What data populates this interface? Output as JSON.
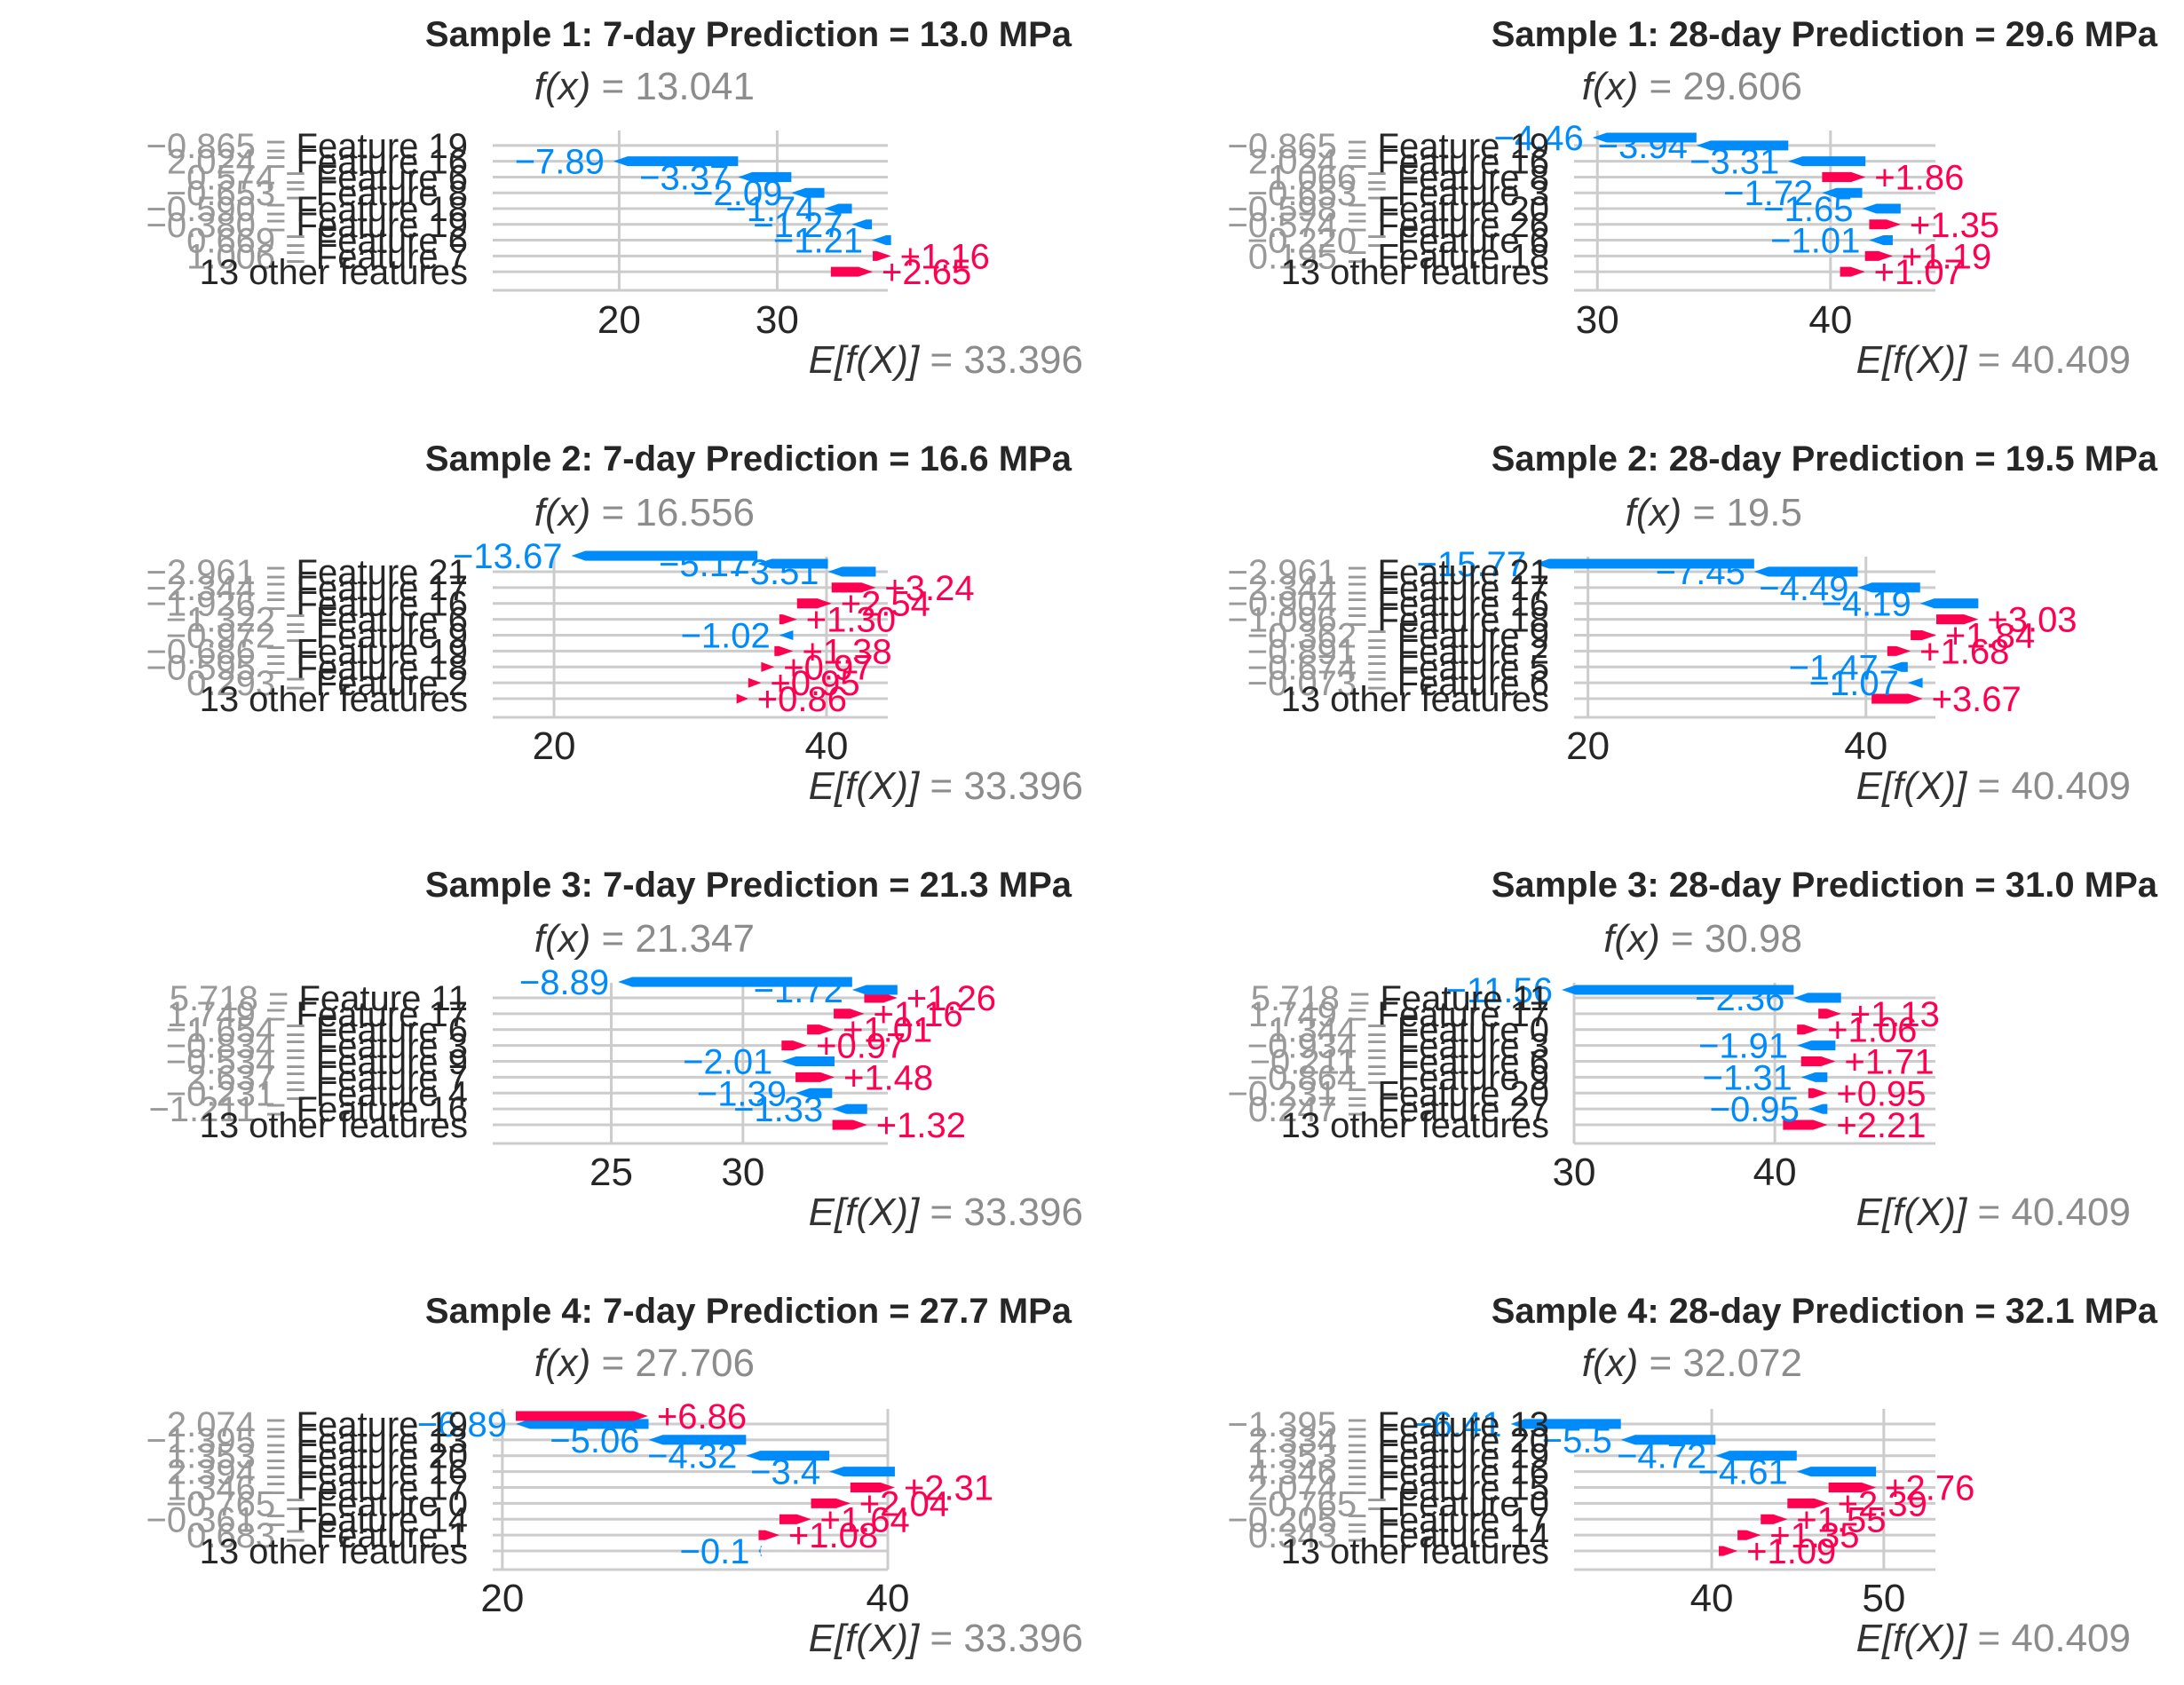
{
  "colors": {
    "negative": "#008bfb",
    "positive": "#ff0051",
    "grid": "#cccccc",
    "label_gray": "#999999",
    "text": "#262626"
  },
  "chart_data": [
    {
      "type": "waterfall",
      "title": "Sample 1: 7-day Prediction = 13.0 MPa",
      "fx_value": "13.041",
      "base_value": "33.396",
      "xticks": [
        20,
        30
      ],
      "xlim": [
        12.0,
        37.0
      ],
      "base": 33.396,
      "contributions": [
        -2.65,
        -1.16,
        1.21,
        1.27,
        1.74,
        2.09,
        3.37,
        7.89
      ],
      "labels": [
        "+2.65",
        "+1.16",
        "−1.21",
        "−1.27",
        "−1.74",
        "−2.09",
        "−3.37",
        "−7.89"
      ],
      "rows": [
        {
          "value": "−0.865",
          "feature": "Feature 19"
        },
        {
          "value": "2.024",
          "feature": "Feature 16"
        },
        {
          "value": "0.574",
          "feature": "Feature 6"
        },
        {
          "value": "−0.653",
          "feature": "Feature 8"
        },
        {
          "value": "−0.590",
          "feature": "Feature 18"
        },
        {
          "value": "−0.380",
          "feature": "Feature 19"
        },
        {
          "value": "0.669",
          "feature": "Feature 6"
        },
        {
          "value": "1.006",
          "feature": "Feature 7"
        },
        {
          "value": "",
          "feature": "13 other features"
        }
      ]
    },
    {
      "type": "waterfall",
      "title": "Sample 1: 28-day Prediction = 29.6 MPa",
      "fx_value": "29.606",
      "base_value": "40.409",
      "xticks": [
        30,
        40
      ],
      "xlim": [
        29.0,
        44.5
      ],
      "base": 40.409,
      "contributions": [
        -1.07,
        -1.19,
        1.01,
        -1.35,
        1.65,
        1.72,
        -1.86,
        3.31,
        3.94,
        4.46
      ],
      "labels": [
        "+1.07",
        "+1.19",
        "−1.01",
        "+1.35",
        "−1.65",
        "−1.72",
        "+1.86",
        "−3.31",
        "−3.94",
        "−4.46"
      ],
      "rows": [
        {
          "value": "−0.865",
          "feature": "Feature 19"
        },
        {
          "value": "2.024",
          "feature": "Feature 16"
        },
        {
          "value": "1.066",
          "feature": "Feature 8"
        },
        {
          "value": "−0.653",
          "feature": "Feature 3"
        },
        {
          "value": "−0.598",
          "feature": "Feature 20"
        },
        {
          "value": "−0.574",
          "feature": "Feature 26"
        },
        {
          "value": "−0.220",
          "feature": "Feature 6"
        },
        {
          "value": "0.195",
          "feature": "Feature 18"
        },
        {
          "value": "",
          "feature": "13 other features"
        }
      ]
    },
    {
      "type": "waterfall",
      "title": "Sample 2: 7-day Prediction = 16.6 MPa",
      "fx_value": "16.556",
      "base_value": "33.396",
      "xticks": [
        20,
        40
      ],
      "xlim": [
        15.5,
        44.5
      ],
      "base": 33.396,
      "contributions": [
        -0.86,
        -0.95,
        -0.97,
        -1.38,
        1.02,
        -1.3,
        -2.54,
        -3.24,
        3.51,
        5.17,
        13.67
      ],
      "labels": [
        "+0.86",
        "+0.95",
        "+0.97",
        "+1.38",
        "−1.02",
        "+1.30",
        "+2.54",
        "+3.24",
        "−3.51",
        "−5.17",
        "−13.67"
      ],
      "rows": [
        {
          "value": "−2.961",
          "feature": "Feature 21"
        },
        {
          "value": "−2.344",
          "feature": "Feature 17"
        },
        {
          "value": "−1.926",
          "feature": "Feature 16"
        },
        {
          "value": "−1.322",
          "feature": "Feature 6"
        },
        {
          "value": "−0.972",
          "feature": "Feature 9"
        },
        {
          "value": "−0.686",
          "feature": "Feature 19"
        },
        {
          "value": "−0.595",
          "feature": "Feature 18"
        },
        {
          "value": "0.293",
          "feature": "Feature 2"
        },
        {
          "value": "",
          "feature": "13 other features"
        }
      ]
    },
    {
      "type": "waterfall",
      "title": "Sample 2: 28-day Prediction = 19.5 MPa",
      "fx_value": "19.5",
      "base_value": "40.409",
      "xticks": [
        20,
        40
      ],
      "xlim": [
        19.0,
        45.0
      ],
      "base": 40.409,
      "contributions": [
        -3.67,
        1.07,
        1.47,
        -1.68,
        -1.84,
        -3.03,
        4.19,
        4.49,
        7.45,
        15.77
      ],
      "labels": [
        "+3.67",
        "−1.07",
        "−1.47",
        "+1.68",
        "+1.84",
        "+3.03",
        "−4.19",
        "−4.49",
        "−7.45",
        "−15.77"
      ],
      "rows": [
        {
          "value": "−2.961",
          "feature": "Feature 21"
        },
        {
          "value": "−2.344",
          "feature": "Feature 17"
        },
        {
          "value": "−0.904",
          "feature": "Feature 16"
        },
        {
          "value": "−1.096",
          "feature": "Feature 18"
        },
        {
          "value": "−0.362",
          "feature": "Feature 9"
        },
        {
          "value": "−0.891",
          "feature": "Feature 2"
        },
        {
          "value": "−0.674",
          "feature": "Feature 5"
        },
        {
          "value": "−0.073",
          "feature": "Feature 6"
        },
        {
          "value": "",
          "feature": "13 other features"
        }
      ]
    },
    {
      "type": "waterfall",
      "title": "Sample 3: 7-day Prediction = 21.3 MPa",
      "fx_value": "21.347",
      "base_value": "33.396",
      "xticks": [
        25,
        30
      ],
      "xlim": [
        20.5,
        35.5
      ],
      "base": 33.396,
      "contributions": [
        -1.32,
        1.33,
        1.39,
        -1.48,
        2.01,
        -0.97,
        -1.01,
        -1.16,
        -1.26,
        1.72,
        8.89
      ],
      "labels": [
        "+1.32",
        "−1.33",
        "−1.39",
        "+1.48",
        "−2.01",
        "+0.97",
        "+1.01",
        "+1.16",
        "+1.26",
        "−1.72",
        "−8.89"
      ],
      "rows": [
        {
          "value": "5.718",
          "feature": "Feature 11"
        },
        {
          "value": "1.749",
          "feature": "Feature 17"
        },
        {
          "value": "−1.654",
          "feature": "Feature 6"
        },
        {
          "value": "−0.834",
          "feature": "Feature 3"
        },
        {
          "value": "−0.534",
          "feature": "Feature 9"
        },
        {
          "value": "2.637",
          "feature": "Feature 7"
        },
        {
          "value": "−0.231",
          "feature": "Feature 4"
        },
        {
          "value": "−1.211",
          "feature": "Feature 16"
        },
        {
          "value": "",
          "feature": "13 other features"
        }
      ]
    },
    {
      "type": "waterfall",
      "title": "Sample 3: 28-day Prediction = 31.0 MPa",
      "fx_value": "30.98",
      "base_value": "40.409",
      "xticks": [
        30,
        40
      ],
      "xlim": [
        30.0,
        48.0
      ],
      "base": 40.409,
      "contributions": [
        -2.21,
        0.95,
        -0.95,
        1.31,
        -1.71,
        1.91,
        -1.06,
        -1.13,
        2.36,
        11.56
      ],
      "labels": [
        "+2.21",
        "−0.95",
        "+0.95",
        "−1.31",
        "+1.71",
        "−1.91",
        "+1.06",
        "+1.13",
        "−2.36",
        "−11.56"
      ],
      "rows": [
        {
          "value": "5.718",
          "feature": "Feature 11"
        },
        {
          "value": "1.749",
          "feature": "Feature 17"
        },
        {
          "value": "1.344",
          "feature": "Feature 0"
        },
        {
          "value": "−0.934",
          "feature": "Feature 3"
        },
        {
          "value": "−0.211",
          "feature": "Feature 6"
        },
        {
          "value": "−0.864",
          "feature": "Feature 9"
        },
        {
          "value": "−0.231",
          "feature": "Feature 20"
        },
        {
          "value": "0.247",
          "feature": "Feature 27"
        },
        {
          "value": "",
          "feature": "13 other features"
        }
      ]
    },
    {
      "type": "waterfall",
      "title": "Sample 4: 7-day Prediction = 27.7 MPa",
      "fx_value": "27.706",
      "base_value": "33.396",
      "xticks": [
        20,
        40
      ],
      "xlim": [
        19.5,
        40.0
      ],
      "base": 33.396,
      "contributions": [
        0.1,
        -1.08,
        -1.64,
        -2.04,
        -2.31,
        3.4,
        4.32,
        5.06,
        6.89,
        -6.86
      ],
      "labels": [
        "−0.1",
        "+1.08",
        "+1.64",
        "+2.04",
        "+2.31",
        "−3.4",
        "−4.32",
        "−5.06",
        "−6.89",
        "+6.86"
      ],
      "rows": [
        {
          "value": "2.074",
          "feature": "Feature 19"
        },
        {
          "value": "−1.395",
          "feature": "Feature 13"
        },
        {
          "value": "1.353",
          "feature": "Feature 20"
        },
        {
          "value": "2.394",
          "feature": "Feature 16"
        },
        {
          "value": "1.346",
          "feature": "Feature 17"
        },
        {
          "value": "−0.765",
          "feature": "Feature 0"
        },
        {
          "value": "−0.361",
          "feature": "Feature 14"
        },
        {
          "value": "0.683",
          "feature": "Feature 1"
        },
        {
          "value": "",
          "feature": "13 other features"
        }
      ]
    },
    {
      "type": "waterfall",
      "title": "Sample 4: 28-day Prediction = 32.1 MPa",
      "fx_value": "32.072",
      "base_value": "40.409",
      "xticks": [
        40,
        50
      ],
      "xlim": [
        32.0,
        53.0
      ],
      "base": 40.409,
      "contributions": [
        -1.09,
        -1.35,
        -1.55,
        -2.39,
        -2.76,
        4.61,
        4.72,
        5.5,
        6.41
      ],
      "labels": [
        "+1.09",
        "+1.35",
        "+1.55",
        "+2.39",
        "+2.76",
        "−4.61",
        "−4.72",
        "−5.5",
        "−6.41"
      ],
      "rows": [
        {
          "value": "−1.395",
          "feature": "Feature 13"
        },
        {
          "value": "2.334",
          "feature": "Feature 20"
        },
        {
          "value": "1.353",
          "feature": "Feature 19"
        },
        {
          "value": "4.346",
          "feature": "Feature 16"
        },
        {
          "value": "2.074",
          "feature": "Feature 15"
        },
        {
          "value": "−0.765",
          "feature": "Feature 0"
        },
        {
          "value": "−0.205",
          "feature": "Feature 17"
        },
        {
          "value": "0.343",
          "feature": "Feature 14"
        },
        {
          "value": "",
          "feature": "13 other features"
        }
      ]
    }
  ]
}
